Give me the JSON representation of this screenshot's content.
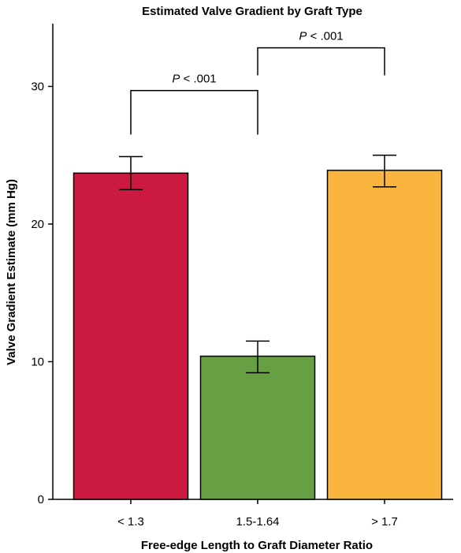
{
  "chart_data": {
    "type": "bar",
    "title": "Estimated Valve Gradient by Graft Type",
    "xlabel": "Free-edge Length to Graft Diameter Ratio",
    "ylabel": "Valve Gradient Estimate (mm Hg)",
    "ylim": [
      0,
      35
    ],
    "yticks": [
      0,
      10,
      20,
      30
    ],
    "categories": [
      "< 1.3",
      "1.5-1.64",
      "> 1.7"
    ],
    "values": [
      23.7,
      10.4,
      23.9
    ],
    "error_low": [
      22.5,
      9.2,
      22.7
    ],
    "error_high": [
      24.9,
      11.5,
      25.0
    ],
    "colors": [
      "#cc1940",
      "#66a042",
      "#f9b53d"
    ],
    "grid": false,
    "comparisons": [
      {
        "from": 0,
        "to": 1,
        "label_p": "P",
        "label_rest": " < .001"
      },
      {
        "from": 1,
        "to": 2,
        "label_p": "P",
        "label_rest": " < .001"
      }
    ]
  }
}
